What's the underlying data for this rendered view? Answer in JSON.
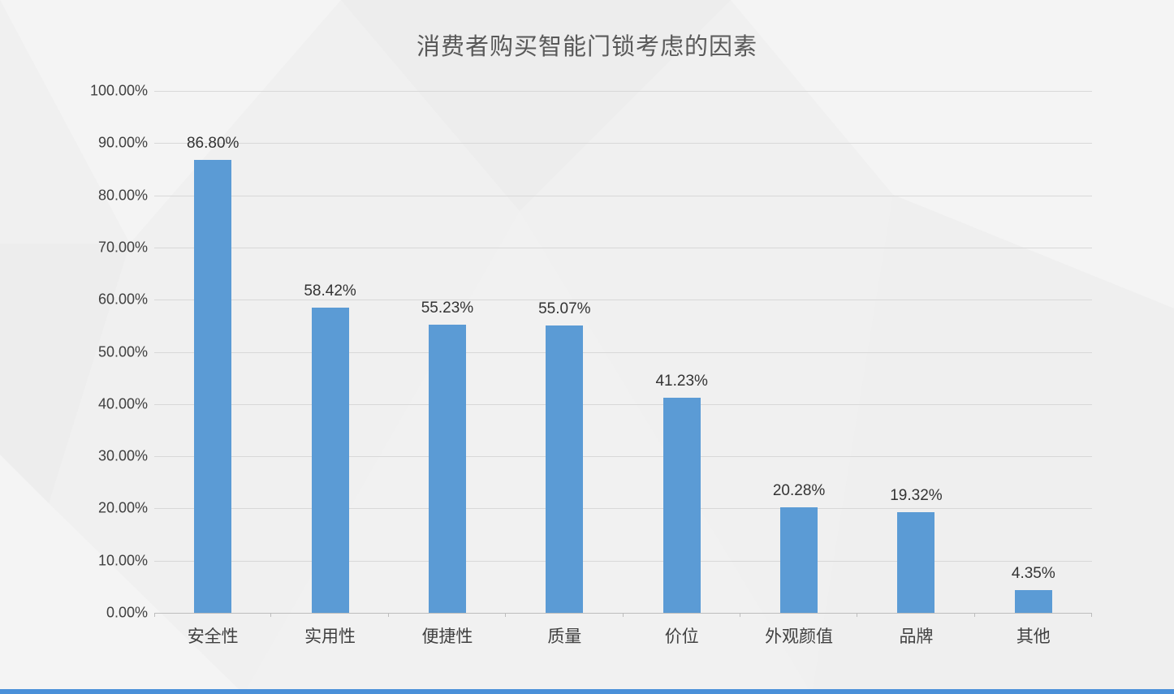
{
  "page": {
    "background_color": "#f0f0f0",
    "accent_bar_color": "#4a90d9"
  },
  "chart_data": {
    "type": "bar",
    "title": "消费者购买智能门锁考虑的因素",
    "categories": [
      "安全性",
      "实用性",
      "便捷性",
      "质量",
      "价位",
      "外观颜值",
      "品牌",
      "其他"
    ],
    "values": [
      86.8,
      58.42,
      55.23,
      55.07,
      41.23,
      20.28,
      19.32,
      4.35
    ],
    "value_labels": [
      "86.80%",
      "58.42%",
      "55.23%",
      "55.07%",
      "41.23%",
      "20.28%",
      "19.32%",
      "4.35%"
    ],
    "y_ticks": [
      "100.00%",
      "90.00%",
      "80.00%",
      "70.00%",
      "60.00%",
      "50.00%",
      "40.00%",
      "30.00%",
      "20.00%",
      "10.00%",
      "0.00%"
    ],
    "ylim": [
      0,
      100
    ],
    "xlabel": "",
    "ylabel": "",
    "bar_color": "#5b9bd5",
    "gridline_color": "#d8d8d8",
    "grid": true,
    "legend": "none"
  }
}
